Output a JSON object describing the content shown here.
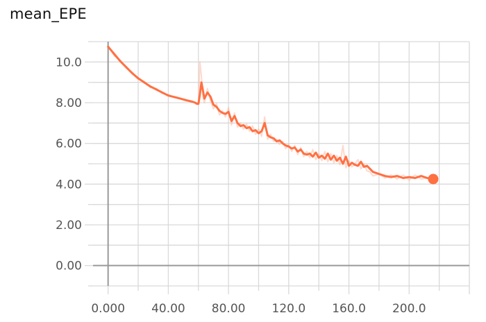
{
  "header": {
    "title": "mean_EPE"
  },
  "chart_data": {
    "type": "line",
    "title": "mean_EPE",
    "xlabel": "",
    "ylabel": "",
    "xlim": [
      -10,
      240
    ],
    "ylim": [
      -1,
      11
    ],
    "x_ticks": [
      0,
      40,
      80,
      120,
      160,
      200
    ],
    "x_tick_labels": [
      "0.000",
      "40.00",
      "80.00",
      "120.0",
      "160.0",
      "200.0"
    ],
    "y_ticks": [
      0,
      2,
      4,
      6,
      8,
      10
    ],
    "y_tick_labels": [
      "0.00",
      "2.00",
      "4.00",
      "6.00",
      "8.00",
      "10.0"
    ],
    "grid": true,
    "colors": {
      "series": "#ff7043",
      "raw": "#ffab91",
      "grid": "#d9d9d9",
      "axis": "#999999"
    },
    "series": [
      {
        "x": [
          0,
          4,
          8,
          12,
          16,
          20,
          24,
          28,
          32,
          36,
          40,
          44,
          48,
          52,
          56,
          58,
          59,
          60,
          61,
          62,
          63,
          64,
          66,
          68,
          70,
          72,
          74,
          76,
          78,
          80,
          82,
          84,
          86,
          88,
          90,
          92,
          94,
          96,
          98,
          100,
          102,
          104,
          106,
          108,
          110,
          112,
          114,
          116,
          118,
          120,
          122,
          124,
          126,
          128,
          130,
          132,
          134,
          136,
          138,
          140,
          142,
          144,
          146,
          148,
          150,
          152,
          154,
          156,
          158,
          160,
          162,
          164,
          166,
          168,
          170,
          172,
          174,
          176,
          180,
          184,
          188,
          192,
          196,
          200,
          204,
          208,
          212,
          216
        ],
        "y": [
          10.75,
          10.4,
          10.05,
          9.75,
          9.45,
          9.2,
          9.0,
          8.8,
          8.65,
          8.5,
          8.35,
          8.28,
          8.2,
          8.12,
          8.05,
          8.0,
          7.95,
          7.95,
          8.4,
          9.0,
          8.6,
          8.2,
          8.5,
          8.3,
          7.9,
          7.8,
          7.6,
          7.5,
          7.45,
          7.55,
          7.1,
          7.35,
          7.0,
          6.85,
          6.9,
          6.75,
          6.8,
          6.6,
          6.65,
          6.5,
          6.6,
          7.0,
          6.4,
          6.3,
          6.25,
          6.1,
          6.15,
          6.0,
          5.9,
          5.85,
          5.75,
          5.8,
          5.6,
          5.7,
          5.5,
          5.45,
          5.5,
          5.35,
          5.55,
          5.3,
          5.4,
          5.25,
          5.5,
          5.2,
          5.4,
          5.15,
          5.3,
          5.0,
          5.35,
          4.9,
          5.05,
          4.95,
          4.9,
          5.1,
          4.85,
          4.9,
          4.75,
          4.6,
          4.5,
          4.4,
          4.35,
          4.4,
          4.3,
          4.35,
          4.3,
          4.4,
          4.3,
          4.25
        ]
      }
    ],
    "raw_series": {
      "x": [
        0,
        4,
        8,
        12,
        16,
        20,
        24,
        28,
        32,
        36,
        40,
        44,
        48,
        52,
        56,
        58,
        60,
        61,
        62,
        63,
        64,
        66,
        68,
        70,
        72,
        74,
        76,
        78,
        80,
        82,
        84,
        86,
        88,
        90,
        92,
        94,
        96,
        98,
        100,
        102,
        104,
        106,
        108,
        110,
        112,
        114,
        116,
        118,
        120,
        122,
        124,
        126,
        128,
        130,
        132,
        134,
        136,
        138,
        140,
        142,
        144,
        146,
        148,
        150,
        152,
        154,
        156,
        158,
        160,
        162,
        164,
        166,
        168,
        170,
        172,
        174,
        176,
        180,
        184,
        188,
        192,
        196,
        200,
        204,
        208,
        212,
        216
      ],
      "y": [
        10.8,
        10.3,
        10.1,
        9.7,
        9.5,
        9.15,
        9.05,
        8.75,
        8.7,
        8.45,
        8.4,
        8.25,
        8.22,
        8.1,
        8.07,
        7.95,
        7.9,
        10.0,
        9.3,
        8.3,
        8.0,
        8.7,
        8.1,
        7.7,
        7.95,
        7.4,
        7.6,
        7.3,
        7.75,
        6.9,
        7.5,
        6.8,
        7.0,
        6.7,
        6.95,
        6.6,
        6.85,
        6.45,
        6.7,
        6.35,
        7.3,
        6.2,
        6.45,
        6.1,
        6.2,
        5.95,
        6.1,
        5.75,
        5.95,
        5.6,
        5.9,
        5.45,
        5.8,
        5.35,
        5.6,
        5.3,
        5.7,
        5.2,
        5.5,
        5.15,
        5.6,
        5.1,
        5.5,
        5.05,
        5.4,
        4.95,
        5.9,
        4.8,
        5.15,
        4.85,
        5.0,
        5.2,
        4.75,
        5.0,
        4.65,
        4.6,
        4.4,
        4.5,
        4.3,
        4.45,
        4.25,
        4.45,
        4.2,
        4.45,
        4.25,
        4.3,
        4.25
      ]
    },
    "last_point": {
      "x": 216,
      "y": 4.25
    }
  }
}
